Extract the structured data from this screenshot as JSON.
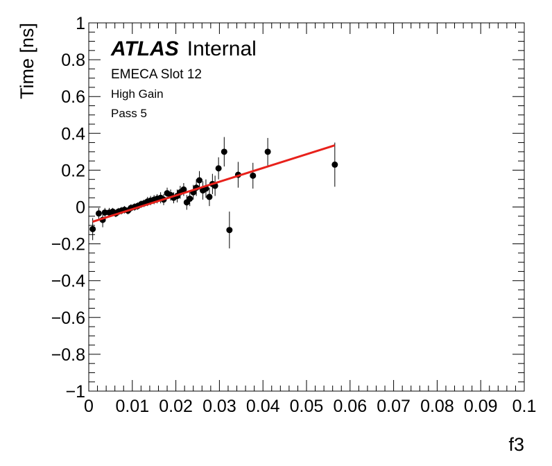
{
  "chart_data": {
    "type": "scatter",
    "xlabel": "f3",
    "ylabel": "Time [ns]",
    "xlim": [
      0,
      0.1
    ],
    "ylim": [
      -1,
      1
    ],
    "x_ticks": [
      0,
      0.01,
      0.02,
      0.03,
      0.04,
      0.05,
      0.06,
      0.07,
      0.08,
      0.09,
      0.1
    ],
    "x_tick_labels": [
      "0",
      "0.01",
      "0.02",
      "0.03",
      "0.04",
      "0.05",
      "0.06",
      "0.07",
      "0.08",
      "0.09",
      "0.1"
    ],
    "y_ticks": [
      -1,
      -0.8,
      -0.6,
      -0.4,
      -0.2,
      0,
      0.2,
      0.4,
      0.6,
      0.8,
      1
    ],
    "y_tick_labels": [
      "−1",
      "−0.8",
      "−0.6",
      "−0.4",
      "−0.2",
      "0",
      "0.2",
      "0.4",
      "0.6",
      "0.8",
      "1"
    ],
    "annotations": {
      "atlas_bold": "ATLAS",
      "atlas_normal": "Internal",
      "line1": "EMECA Slot 12",
      "line2": "High Gain",
      "line3": "Pass 5"
    },
    "points": [
      {
        "x": 0.0009,
        "y": -0.12,
        "err": 0.06
      },
      {
        "x": 0.0023,
        "y": -0.035,
        "err": 0.03
      },
      {
        "x": 0.0032,
        "y": -0.07,
        "err": 0.04
      },
      {
        "x": 0.0037,
        "y": -0.03,
        "err": 0.025
      },
      {
        "x": 0.0047,
        "y": -0.03,
        "err": 0.025
      },
      {
        "x": 0.0055,
        "y": -0.025,
        "err": 0.02
      },
      {
        "x": 0.0062,
        "y": -0.035,
        "err": 0.02
      },
      {
        "x": 0.0068,
        "y": -0.025,
        "err": 0.02
      },
      {
        "x": 0.0075,
        "y": -0.02,
        "err": 0.02
      },
      {
        "x": 0.0082,
        "y": -0.015,
        "err": 0.02
      },
      {
        "x": 0.009,
        "y": -0.02,
        "err": 0.02
      },
      {
        "x": 0.0097,
        "y": -0.005,
        "err": 0.02
      },
      {
        "x": 0.0105,
        "y": 0.0,
        "err": 0.02
      },
      {
        "x": 0.0112,
        "y": 0.005,
        "err": 0.02
      },
      {
        "x": 0.012,
        "y": 0.015,
        "err": 0.02
      },
      {
        "x": 0.0127,
        "y": 0.02,
        "err": 0.02
      },
      {
        "x": 0.0135,
        "y": 0.03,
        "err": 0.025
      },
      {
        "x": 0.0142,
        "y": 0.035,
        "err": 0.025
      },
      {
        "x": 0.015,
        "y": 0.04,
        "err": 0.025
      },
      {
        "x": 0.0157,
        "y": 0.045,
        "err": 0.025
      },
      {
        "x": 0.0165,
        "y": 0.05,
        "err": 0.03
      },
      {
        "x": 0.0172,
        "y": 0.04,
        "err": 0.03
      },
      {
        "x": 0.018,
        "y": 0.075,
        "err": 0.03
      },
      {
        "x": 0.0188,
        "y": 0.065,
        "err": 0.03
      },
      {
        "x": 0.0195,
        "y": 0.05,
        "err": 0.03
      },
      {
        "x": 0.0203,
        "y": 0.06,
        "err": 0.035
      },
      {
        "x": 0.021,
        "y": 0.08,
        "err": 0.035
      },
      {
        "x": 0.0218,
        "y": 0.095,
        "err": 0.035
      },
      {
        "x": 0.0225,
        "y": 0.025,
        "err": 0.04
      },
      {
        "x": 0.0232,
        "y": 0.045,
        "err": 0.04
      },
      {
        "x": 0.024,
        "y": 0.08,
        "err": 0.04
      },
      {
        "x": 0.0247,
        "y": 0.105,
        "err": 0.045
      },
      {
        "x": 0.0254,
        "y": 0.145,
        "err": 0.05
      },
      {
        "x": 0.0262,
        "y": 0.09,
        "err": 0.05
      },
      {
        "x": 0.0269,
        "y": 0.1,
        "err": 0.05
      },
      {
        "x": 0.0277,
        "y": 0.055,
        "err": 0.05
      },
      {
        "x": 0.0284,
        "y": 0.125,
        "err": 0.055
      },
      {
        "x": 0.029,
        "y": 0.115,
        "err": 0.055
      },
      {
        "x": 0.0298,
        "y": 0.21,
        "err": 0.06
      },
      {
        "x": 0.0311,
        "y": 0.3,
        "err": 0.08
      },
      {
        "x": 0.0323,
        "y": -0.125,
        "err": 0.1
      },
      {
        "x": 0.0343,
        "y": 0.175,
        "err": 0.07
      },
      {
        "x": 0.0377,
        "y": 0.17,
        "err": 0.07
      },
      {
        "x": 0.0411,
        "y": 0.3,
        "err": 0.075
      },
      {
        "x": 0.0565,
        "y": 0.23,
        "err": 0.12
      }
    ],
    "fit_line": {
      "x": [
        0.0009,
        0.0565
      ],
      "y": [
        -0.08,
        0.335
      ],
      "color": "#e8211b"
    },
    "grid": false
  }
}
